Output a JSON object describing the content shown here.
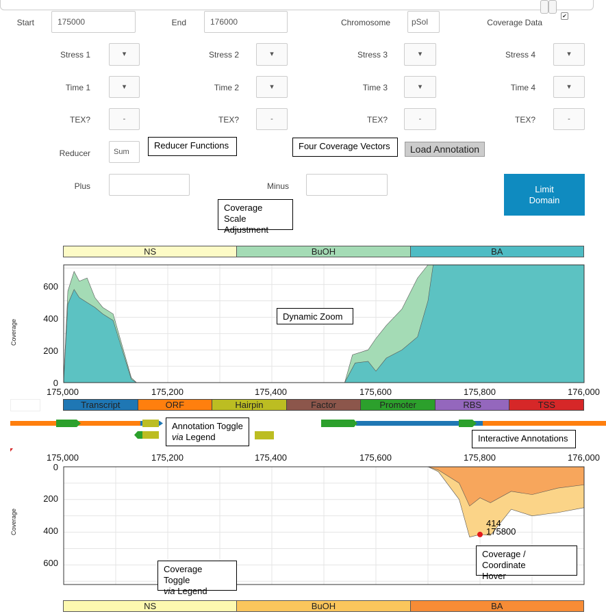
{
  "controls": {
    "start_label": "Start",
    "start_value": "175000",
    "end_label": "End",
    "end_value": "176000",
    "chromosome_label": "Chromosome",
    "chromosome_value": "pSol",
    "coverage_data_label": "Coverage Data",
    "coverage_data_checked": true,
    "stress": [
      "Stress 1",
      "Stress 2",
      "Stress 3",
      "Stress 4"
    ],
    "time": [
      "Time 1",
      "Time 2",
      "Time 3",
      "Time 4"
    ],
    "tex": [
      "TEX?",
      "TEX?",
      "TEX?",
      "TEX?"
    ],
    "reducer_label": "Reducer",
    "reducer_value": "Sum",
    "plus_label": "Plus",
    "minus_label": "Minus",
    "load_annotation": "Load Annotation",
    "limit_domain": "Limit Domain"
  },
  "callouts": {
    "reducer_functions": "Reducer Functions",
    "four_coverage_vectors": "Four Coverage Vectors",
    "coverage_scale": "Coverage Scale Adjustment",
    "dynamic_zoom": "Dynamic Zoom",
    "annotation_toggle_line1": "Annotation Toggle",
    "annotation_toggle_via": "via",
    "annotation_toggle_rest": " Legend",
    "interactive_annotations": "Interactive Annotations",
    "coverage_toggle_line1": "Coverage Toggle",
    "coverage_toggle_via": "via",
    "coverage_toggle_rest": " Legend",
    "hover_line1": "Coverage / Coordinate",
    "hover_line2": "Hover"
  },
  "top_legend": [
    {
      "name": "NS",
      "color": "#fdfbc6"
    },
    {
      "name": "BuOH",
      "color": "#a4dbb5"
    },
    {
      "name": "BA",
      "color": "#4fbcc4"
    }
  ],
  "bottom_legend": [
    {
      "name": "NS",
      "color": "#fdf9b0"
    },
    {
      "name": "BuOH",
      "color": "#fbc65c"
    },
    {
      "name": "BA",
      "color": "#f78c36"
    }
  ],
  "annotation_legend": [
    {
      "name": "Transcript",
      "color": "#1f77b4"
    },
    {
      "name": "ORF",
      "color": "#ff7f0e"
    },
    {
      "name": "Hairpin",
      "color": "#bcbd22"
    },
    {
      "name": "Factor",
      "color": "#8c564b"
    },
    {
      "name": "Promoter",
      "color": "#2ca02c"
    },
    {
      "name": "RBS",
      "color": "#9467bd"
    },
    {
      "name": "TSS",
      "color": "#d62728"
    }
  ],
  "axis": {
    "x_ticks": [
      "175,000",
      "175,200",
      "175,400",
      "175,600",
      "175,800",
      "176,000"
    ],
    "top_y_ticks": [
      "0",
      "200",
      "400",
      "600"
    ],
    "bottom_y_ticks": [
      "0",
      "200",
      "400",
      "600"
    ],
    "y_label": "Coverage"
  },
  "hover": {
    "value": "414",
    "coordinate": "175800"
  },
  "chart_data": [
    {
      "type": "area",
      "ylabel": "Coverage",
      "xlim": [
        175000,
        176000
      ],
      "ylim": [
        0,
        720
      ],
      "series": [
        {
          "name": "BuOH",
          "x": [
            175000,
            175008,
            175020,
            175030,
            175045,
            175060,
            175075,
            175095,
            175130,
            175140,
            175540,
            175555,
            175585,
            175600,
            175620,
            175650,
            175680,
            175700,
            175710,
            176000
          ],
          "values": [
            10,
            560,
            680,
            620,
            640,
            520,
            460,
            420,
            30,
            0,
            0,
            170,
            200,
            270,
            350,
            450,
            640,
            720,
            720,
            720
          ]
        },
        {
          "name": "BA",
          "x": [
            175000,
            175008,
            175020,
            175030,
            175045,
            175060,
            175075,
            175095,
            175130,
            175140,
            175540,
            175560,
            175585,
            175600,
            175620,
            175650,
            175680,
            175700,
            175710,
            176000
          ],
          "values": [
            10,
            480,
            570,
            520,
            490,
            460,
            420,
            380,
            20,
            0,
            0,
            120,
            130,
            70,
            150,
            200,
            280,
            500,
            720,
            720
          ]
        }
      ]
    },
    {
      "type": "area",
      "ylabel": "Coverage",
      "xlim": [
        175000,
        176000
      ],
      "ylim": [
        0,
        720
      ],
      "series": [
        {
          "name": "BuOH",
          "x": [
            175000,
            175700,
            175720,
            175760,
            175780,
            175800,
            175820,
            175860,
            175900,
            175950,
            176000
          ],
          "values": [
            0,
            0,
            30,
            200,
            430,
            414,
            420,
            260,
            300,
            280,
            250
          ]
        },
        {
          "name": "BA",
          "x": [
            175000,
            175700,
            175720,
            175760,
            175780,
            175800,
            175820,
            175860,
            175900,
            175950,
            176000
          ],
          "values": [
            0,
            0,
            20,
            100,
            240,
            190,
            220,
            150,
            170,
            130,
            110
          ]
        }
      ]
    }
  ]
}
